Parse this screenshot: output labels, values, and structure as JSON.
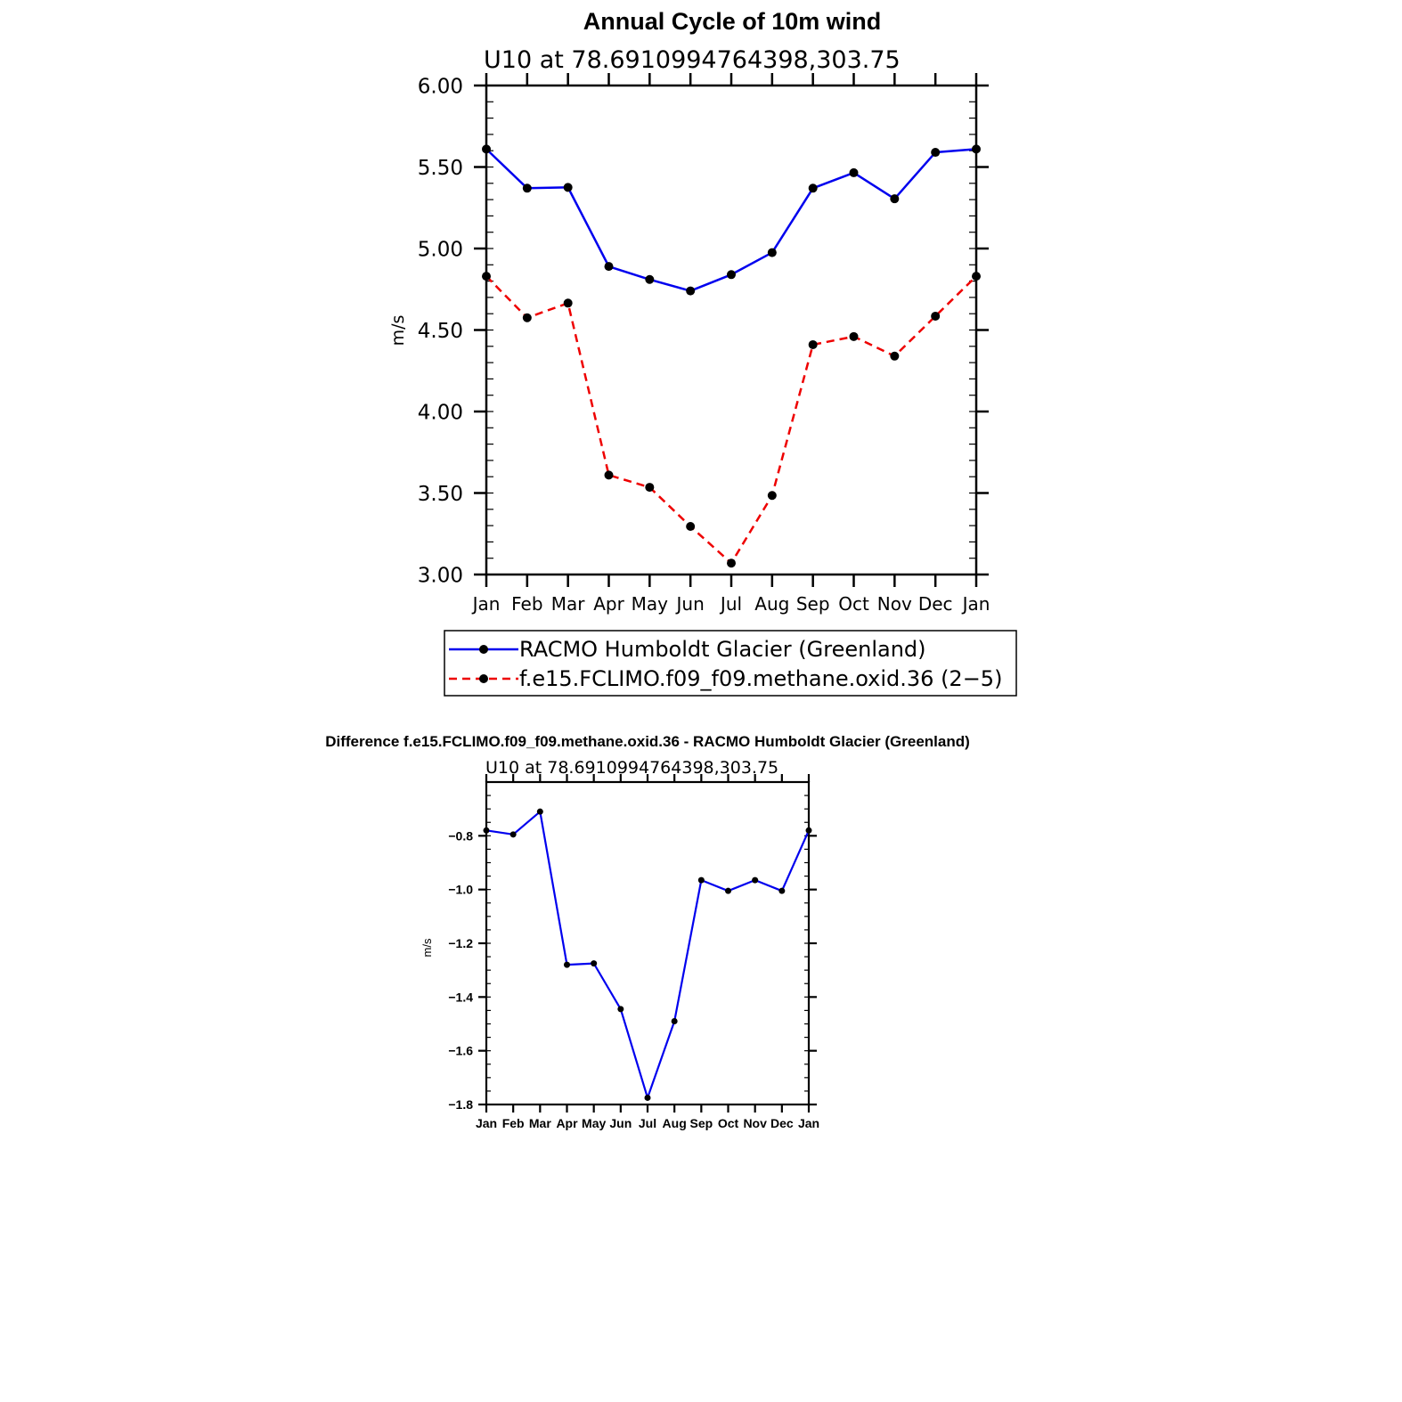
{
  "page": {
    "title": "Annual Cycle of 10m wind"
  },
  "chart_data": [
    {
      "id": "main",
      "type": "line",
      "title": "Annual Cycle of 10m wind",
      "subtitle": "U10  at  78.6910994764398,303.75",
      "xlabel": "",
      "ylabel": "m/s",
      "ylim": [
        3.0,
        6.0
      ],
      "yticks": [
        3.0,
        3.5,
        4.0,
        4.5,
        5.0,
        5.5,
        6.0
      ],
      "ytick_labels": [
        "3.00",
        "3.50",
        "4.00",
        "4.50",
        "5.00",
        "5.50",
        "6.00"
      ],
      "categories": [
        "Jan",
        "Feb",
        "Mar",
        "Apr",
        "May",
        "Jun",
        "Jul",
        "Aug",
        "Sep",
        "Oct",
        "Nov",
        "Dec",
        "Jan"
      ],
      "series": [
        {
          "name": "RACMO Humboldt Glacier (Greenland)",
          "color": "#0000ee",
          "dashed": false,
          "values": [
            5.61,
            5.37,
            5.375,
            4.89,
            4.81,
            4.74,
            4.84,
            4.975,
            5.37,
            5.465,
            5.305,
            5.59,
            5.61
          ]
        },
        {
          "name": "f.e15.FCLIMO.f09_f09.methane.oxid.36 (2−5)",
          "color": "#ee0000",
          "dashed": true,
          "values": [
            4.83,
            4.575,
            4.665,
            3.61,
            3.535,
            3.295,
            3.07,
            3.485,
            4.41,
            4.46,
            4.34,
            4.585,
            4.83
          ]
        }
      ],
      "legend_position": "bottom"
    },
    {
      "id": "diff",
      "type": "line",
      "title": "Difference f.e15.FCLIMO.f09_f09.methane.oxid.36 - RACMO Humboldt Glacier (Greenland)",
      "subtitle": "U10  at  78.6910994764398,303.75",
      "xlabel": "",
      "ylabel": "m/s",
      "ylim": [
        -1.8,
        -0.6
      ],
      "yticks": [
        -1.8,
        -1.6,
        -1.4,
        -1.2,
        -1.0,
        -0.8
      ],
      "ytick_labels": [
        "−1.8",
        "−1.6",
        "−1.4",
        "−1.2",
        "−1.0",
        "−0.8"
      ],
      "categories": [
        "Jan",
        "Feb",
        "Mar",
        "Apr",
        "May",
        "Jun",
        "Jul",
        "Aug",
        "Sep",
        "Oct",
        "Nov",
        "Dec",
        "Jan"
      ],
      "series": [
        {
          "name": "Difference",
          "color": "#0000ee",
          "dashed": false,
          "values": [
            -0.78,
            -0.795,
            -0.71,
            -1.28,
            -1.275,
            -1.445,
            -1.775,
            -1.49,
            -0.965,
            -1.005,
            -0.965,
            -1.005,
            -0.78
          ]
        }
      ]
    }
  ]
}
